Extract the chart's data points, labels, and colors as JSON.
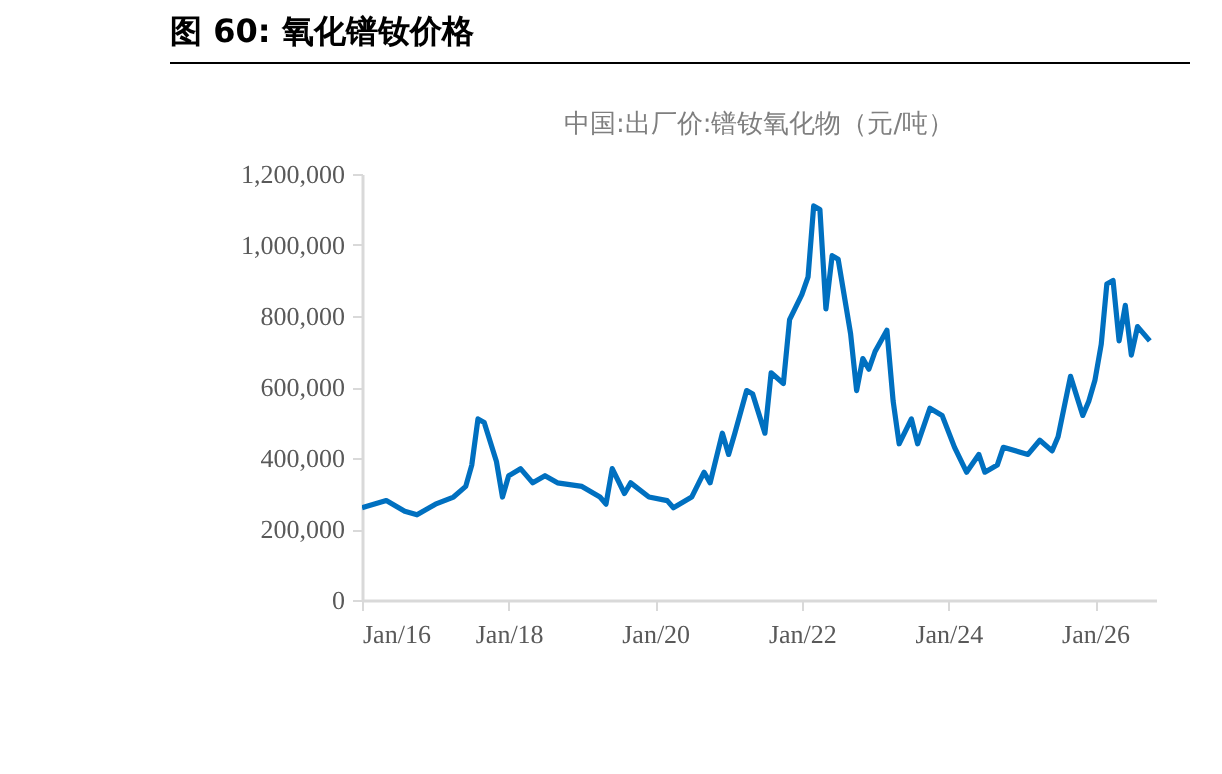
{
  "chart_data": {
    "type": "line",
    "title": "图 60:  氧化镨钕价格",
    "subtitle": "中国:出厂价:镨钕氧化物（元/吨）",
    "x": [
      "2016-01",
      "2016-05",
      "2016-08",
      "2016-10",
      "2017-01",
      "2017-04",
      "2017-06",
      "2017-07",
      "2017-08",
      "2017-09",
      "2017-11",
      "2017-12",
      "2018-01",
      "2018-03",
      "2018-05",
      "2018-07",
      "2018-09",
      "2019-01",
      "2019-04",
      "2019-05",
      "2019-06",
      "2019-08",
      "2019-09",
      "2019-12",
      "2020-03",
      "2020-04",
      "2020-07",
      "2020-09",
      "2020-10",
      "2020-12",
      "2021-01",
      "2021-02",
      "2021-04",
      "2021-05",
      "2021-07",
      "2021-08",
      "2021-10",
      "2021-11",
      "2022-01",
      "2022-02",
      "2022-03",
      "2022-04",
      "2022-05",
      "2022-06",
      "2022-07",
      "2022-09",
      "2022-10",
      "2022-11",
      "2022-12",
      "2023-01",
      "2023-03",
      "2023-04",
      "2023-05",
      "2023-07",
      "2023-08",
      "2023-10",
      "2023-12",
      "2024-02",
      "2024-04",
      "2024-06",
      "2024-07",
      "2024-09",
      "2024-10",
      "2025-02",
      "2025-04",
      "2025-06",
      "2025-07",
      "2025-09",
      "2025-11",
      "2025-12",
      "2026-01",
      "2026-02",
      "2026-03",
      "2026-04",
      "2026-05",
      "2026-06",
      "2026-07",
      "2026-08",
      "2026-10"
    ],
    "series": [
      {
        "color": "#0070c0",
        "values": [
          260000,
          280000,
          250000,
          240000,
          270000,
          290000,
          320000,
          380000,
          510000,
          500000,
          390000,
          290000,
          350000,
          370000,
          330000,
          350000,
          330000,
          320000,
          290000,
          270000,
          370000,
          300000,
          330000,
          290000,
          280000,
          260000,
          290000,
          360000,
          330000,
          470000,
          410000,
          470000,
          590000,
          580000,
          470000,
          640000,
          610000,
          790000,
          860000,
          910000,
          1110000,
          1100000,
          820000,
          970000,
          960000,
          750000,
          590000,
          680000,
          650000,
          700000,
          760000,
          560000,
          440000,
          510000,
          440000,
          540000,
          520000,
          430000,
          360000,
          410000,
          360000,
          380000,
          430000,
          410000,
          450000,
          420000,
          460000,
          630000,
          520000,
          560000,
          620000,
          720000,
          890000,
          900000,
          730000,
          830000,
          690000,
          770000,
          730000
        ]
      }
    ],
    "xlim": [
      "2016-01",
      "2026-11"
    ],
    "xticks": [
      {
        "value": "2016-01",
        "label": "Jan/16"
      },
      {
        "value": "2018-01",
        "label": "Jan/18"
      },
      {
        "value": "2020-01",
        "label": "Jan/20"
      },
      {
        "value": "2022-01",
        "label": "Jan/22"
      },
      {
        "value": "2024-01",
        "label": "Jan/24"
      },
      {
        "value": "2026-01",
        "label": "Jan/26"
      }
    ],
    "ylim": [
      0,
      1200000
    ],
    "yticks": [
      {
        "value": 0,
        "label": "0"
      },
      {
        "value": 200000,
        "label": "200,000"
      },
      {
        "value": 400000,
        "label": "400,000"
      },
      {
        "value": 600000,
        "label": "600,000"
      },
      {
        "value": 800000,
        "label": "800,000"
      },
      {
        "value": 1000000,
        "label": "1,000,000"
      },
      {
        "value": 1200000,
        "label": "1,200,000"
      }
    ]
  }
}
